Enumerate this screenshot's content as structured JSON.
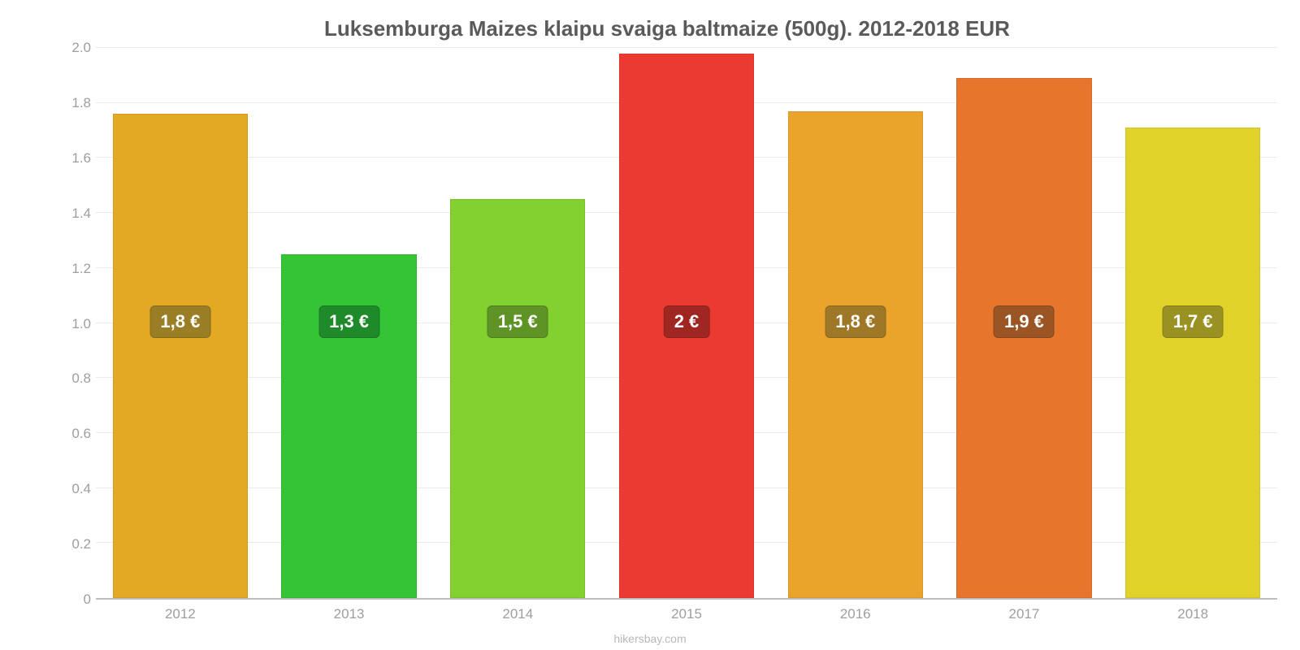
{
  "chart": {
    "type": "bar",
    "title": "Luksemburga Maizes klaipu svaiga baltmaize (500g). 2012-2018 EUR",
    "title_fontsize": 26,
    "title_color": "#5a5a5a",
    "background_color": "#ffffff",
    "grid_color": "#ececec",
    "axis_label_color": "#9e9e9e",
    "axis_fontsize": 17,
    "ylim": [
      0,
      2.0
    ],
    "yticks": [
      "0",
      "0.2",
      "0.4",
      "0.6",
      "0.8",
      "1.0",
      "1.2",
      "1.4",
      "1.6",
      "1.8",
      "2.0"
    ],
    "ytick_values": [
      0,
      0.2,
      0.4,
      0.6,
      0.8,
      1.0,
      1.2,
      1.4,
      1.6,
      1.8,
      2.0
    ],
    "categories": [
      "2012",
      "2013",
      "2014",
      "2015",
      "2016",
      "2017",
      "2018"
    ],
    "values": [
      1.76,
      1.25,
      1.45,
      1.98,
      1.77,
      1.89,
      1.71
    ],
    "value_labels": [
      "1,8 €",
      "1,3 €",
      "1,5 €",
      "2 €",
      "1,8 €",
      "1,9 €",
      "1,7 €"
    ],
    "bar_colors": [
      "#e3a924",
      "#34c436",
      "#82d12f",
      "#ea3a32",
      "#eaa42b",
      "#e7752c",
      "#e1d22a"
    ],
    "badge_colors": [
      "#9a7e25",
      "#1f8a2a",
      "#5e9326",
      "#a02622",
      "#9e7826",
      "#9b5525",
      "#9a9123"
    ],
    "badge_offset_pct": 52,
    "value_fontsize": 22,
    "bar_width": 0.8,
    "attribution": "hikersbay.com"
  }
}
